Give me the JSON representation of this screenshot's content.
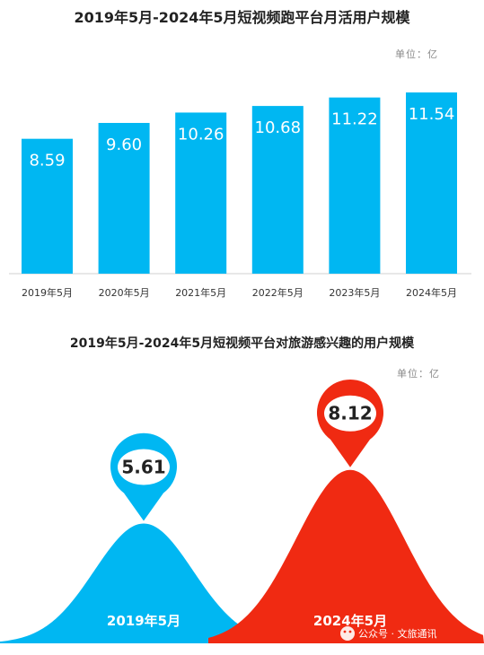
{
  "chart_data": [
    {
      "type": "bar",
      "title": "2019年5月-2024年5月短视频跑平台月活用户规模",
      "unit": "单位：亿",
      "categories": [
        "2019年5月",
        "2020年5月",
        "2021年5月",
        "2022年5月",
        "2023年5月",
        "2024年5月"
      ],
      "values": [
        8.59,
        9.6,
        10.26,
        10.68,
        11.22,
        11.54
      ],
      "value_labels": [
        "8.59",
        "9.60",
        "10.26",
        "10.68",
        "11.22",
        "11.54"
      ],
      "ylim": [
        0,
        12
      ],
      "color": "#00B7F2"
    },
    {
      "type": "area",
      "title": "2019年5月-2024年5月短视频平台对旅游感兴趣的用户规模",
      "unit": "单位：亿",
      "categories": [
        "2019年5月",
        "2024年5月"
      ],
      "values": [
        5.61,
        8.12
      ],
      "value_labels": [
        "5.61",
        "8.12"
      ],
      "colors": [
        "#00B7F2",
        "#F02A12"
      ]
    }
  ],
  "watermark": "公众号 · 文旅通讯"
}
